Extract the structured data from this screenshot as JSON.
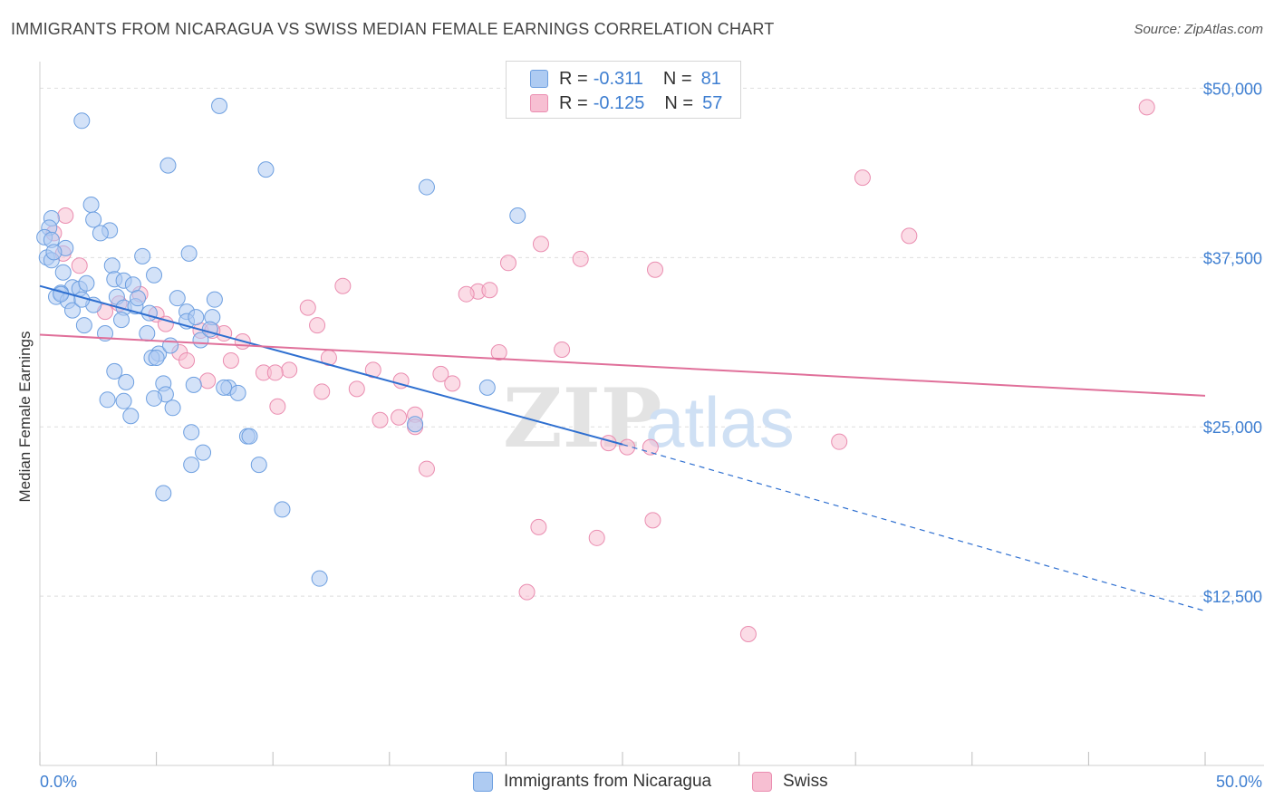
{
  "header": {
    "title": "IMMIGRANTS FROM NICARAGUA VS SWISS MEDIAN FEMALE EARNINGS CORRELATION CHART",
    "source": "Source: ZipAtlas.com"
  },
  "legend_top": {
    "rows": [
      {
        "r_label": "R =",
        "r_value": "-0.311",
        "n_label": "N =",
        "n_value": "81",
        "color": "#aecbf2"
      },
      {
        "r_label": "R =",
        "r_value": "-0.125",
        "n_label": "N =",
        "n_value": "57",
        "color": "#f7bfd2"
      }
    ]
  },
  "legend_bottom": {
    "items": [
      {
        "label": "Immigrants from Nicaragua",
        "color": "#aecbf2"
      },
      {
        "label": "Swiss",
        "color": "#f7bfd2"
      }
    ]
  },
  "watermark": {
    "zip": "ZIP",
    "atlas": "atlas"
  },
  "chart_data": {
    "type": "scatter",
    "title": "IMMIGRANTS FROM NICARAGUA VS SWISS MEDIAN FEMALE EARNINGS CORRELATION CHART",
    "xlabel": "",
    "ylabel": "Median Female Earnings",
    "xlim": [
      0,
      50
    ],
    "ylim": [
      0,
      51500
    ],
    "x_tick_labels": {
      "left": "0.0%",
      "right": "50.0%"
    },
    "y_ticks": [
      {
        "value": 12500,
        "label": "$12,500"
      },
      {
        "value": 25000,
        "label": "$25,000"
      },
      {
        "value": 37500,
        "label": "$37,500"
      },
      {
        "value": 50000,
        "label": "$50,000"
      }
    ],
    "grid": true,
    "legend_position": "top-center",
    "colors": {
      "blue_fill": "#aecbf2",
      "blue_stroke": "#6d9fe0",
      "blue_line": "#2e6fd0",
      "pink_fill": "#f7bfd2",
      "pink_stroke": "#ea8db0",
      "pink_line": "#e0709a",
      "axis_text": "#3f7fd1",
      "grid": "#dedede"
    },
    "series": [
      {
        "name": "Immigrants from Nicaragua",
        "color": "#aecbf2",
        "trend": {
          "x": [
            0,
            25
          ],
          "y": [
            35400,
            23700
          ],
          "dashed_to": {
            "x": 50,
            "y": 11400
          }
        },
        "points": [
          [
            7.7,
            48700
          ],
          [
            1.8,
            47600
          ],
          [
            5.5,
            44300
          ],
          [
            9.7,
            44000
          ],
          [
            16.6,
            42700
          ],
          [
            2.2,
            41400
          ],
          [
            20.5,
            40600
          ],
          [
            0.5,
            40400
          ],
          [
            2.3,
            40300
          ],
          [
            0.4,
            39700
          ],
          [
            3.0,
            39500
          ],
          [
            0.2,
            39000
          ],
          [
            0.5,
            38800
          ],
          [
            1.1,
            38200
          ],
          [
            6.4,
            37800
          ],
          [
            4.4,
            37600
          ],
          [
            0.3,
            37500
          ],
          [
            0.5,
            37300
          ],
          [
            3.1,
            36900
          ],
          [
            1.0,
            36400
          ],
          [
            4.9,
            36200
          ],
          [
            3.2,
            35900
          ],
          [
            3.6,
            35800
          ],
          [
            4.0,
            35500
          ],
          [
            1.4,
            35300
          ],
          [
            1.7,
            35200
          ],
          [
            0.9,
            34900
          ],
          [
            0.7,
            34600
          ],
          [
            3.3,
            34600
          ],
          [
            5.9,
            34500
          ],
          [
            7.5,
            34400
          ],
          [
            1.2,
            34300
          ],
          [
            2.3,
            34000
          ],
          [
            3.6,
            33800
          ],
          [
            4.1,
            33900
          ],
          [
            1.4,
            33600
          ],
          [
            6.3,
            33500
          ],
          [
            4.7,
            33400
          ],
          [
            7.4,
            33100
          ],
          [
            6.3,
            32800
          ],
          [
            1.9,
            32500
          ],
          [
            4.6,
            31900
          ],
          [
            2.8,
            31900
          ],
          [
            6.9,
            31400
          ],
          [
            5.1,
            30400
          ],
          [
            4.8,
            30100
          ],
          [
            5.0,
            30100
          ],
          [
            3.2,
            29100
          ],
          [
            3.7,
            28300
          ],
          [
            5.3,
            28200
          ],
          [
            6.6,
            28100
          ],
          [
            8.1,
            27900
          ],
          [
            7.9,
            27900
          ],
          [
            8.5,
            27500
          ],
          [
            5.4,
            27400
          ],
          [
            4.9,
            27100
          ],
          [
            2.9,
            27000
          ],
          [
            3.6,
            26900
          ],
          [
            5.7,
            26400
          ],
          [
            3.9,
            25800
          ],
          [
            19.2,
            27900
          ],
          [
            16.1,
            25200
          ],
          [
            6.5,
            24600
          ],
          [
            8.9,
            24300
          ],
          [
            9.0,
            24300
          ],
          [
            7.0,
            23100
          ],
          [
            6.5,
            22200
          ],
          [
            9.4,
            22200
          ],
          [
            5.3,
            20100
          ],
          [
            10.4,
            18900
          ],
          [
            12.0,
            13800
          ],
          [
            2.6,
            39300
          ],
          [
            6.7,
            33100
          ],
          [
            4.2,
            34500
          ],
          [
            2.0,
            35600
          ],
          [
            0.9,
            34800
          ],
          [
            1.8,
            34400
          ],
          [
            3.5,
            32900
          ],
          [
            0.6,
            37900
          ],
          [
            5.6,
            31000
          ],
          [
            7.3,
            32200
          ]
        ]
      },
      {
        "name": "Swiss",
        "color": "#f7bfd2",
        "trend": {
          "x": [
            0,
            50
          ],
          "y": [
            31800,
            27300
          ]
        },
        "points": [
          [
            47.5,
            48600
          ],
          [
            35.3,
            43400
          ],
          [
            37.3,
            39100
          ],
          [
            0.6,
            39300
          ],
          [
            1.1,
            40600
          ],
          [
            21.5,
            38500
          ],
          [
            23.2,
            37400
          ],
          [
            20.1,
            37100
          ],
          [
            26.4,
            36600
          ],
          [
            1.0,
            37800
          ],
          [
            1.7,
            36900
          ],
          [
            13.0,
            35400
          ],
          [
            18.8,
            35000
          ],
          [
            19.3,
            35100
          ],
          [
            18.3,
            34800
          ],
          [
            4.3,
            34800
          ],
          [
            3.4,
            34100
          ],
          [
            2.8,
            33500
          ],
          [
            5.0,
            33300
          ],
          [
            11.5,
            33800
          ],
          [
            5.4,
            32600
          ],
          [
            11.9,
            32500
          ],
          [
            6.9,
            32100
          ],
          [
            7.9,
            31900
          ],
          [
            8.7,
            31300
          ],
          [
            22.4,
            30700
          ],
          [
            19.7,
            30500
          ],
          [
            6.0,
            30500
          ],
          [
            12.4,
            30100
          ],
          [
            6.3,
            29900
          ],
          [
            8.2,
            29900
          ],
          [
            14.3,
            29200
          ],
          [
            10.7,
            29200
          ],
          [
            9.6,
            29000
          ],
          [
            10.1,
            29000
          ],
          [
            17.2,
            28900
          ],
          [
            7.2,
            28400
          ],
          [
            15.5,
            28400
          ],
          [
            17.7,
            28200
          ],
          [
            13.6,
            27800
          ],
          [
            12.1,
            27600
          ],
          [
            10.2,
            26500
          ],
          [
            14.6,
            25500
          ],
          [
            15.4,
            25700
          ],
          [
            16.1,
            25900
          ],
          [
            16.1,
            25000
          ],
          [
            24.4,
            23800
          ],
          [
            25.2,
            23500
          ],
          [
            26.2,
            23500
          ],
          [
            34.3,
            23900
          ],
          [
            16.6,
            21900
          ],
          [
            26.3,
            18100
          ],
          [
            21.4,
            17600
          ],
          [
            23.9,
            16800
          ],
          [
            20.9,
            12800
          ],
          [
            30.4,
            9700
          ],
          [
            7.4,
            32100
          ]
        ]
      }
    ]
  }
}
